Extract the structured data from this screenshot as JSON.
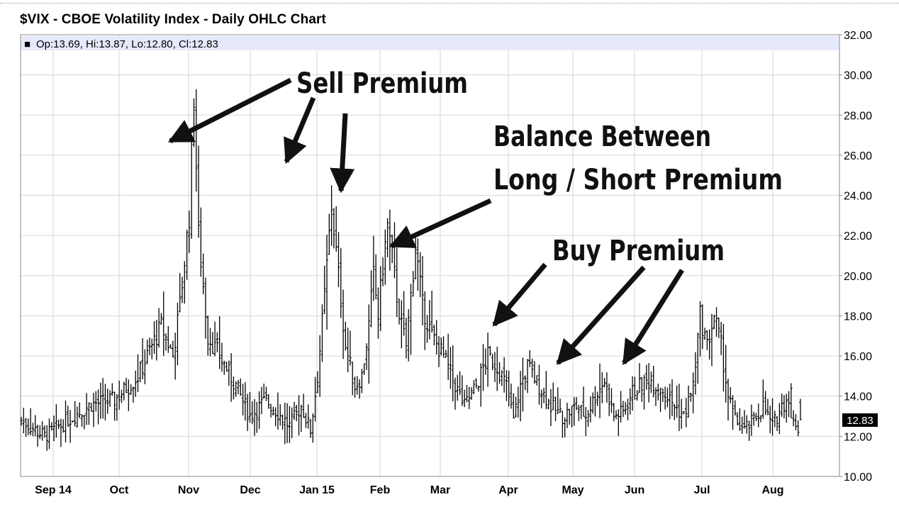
{
  "chart_data": {
    "type": "ohlc",
    "title": "$VIX - CBOE Volatility Index - Daily OHLC Chart",
    "legend": {
      "symbol": "■",
      "text": "Op:13.69, Hi:13.87, Lo:12.80, Cl:12.83"
    },
    "y_axis": {
      "position": "right",
      "ylim": [
        10,
        32
      ],
      "ticks": [
        "32.00",
        "30.00",
        "28.00",
        "26.00",
        "24.00",
        "22.00",
        "20.00",
        "18.00",
        "16.00",
        "14.00",
        "12.00",
        "10.00"
      ]
    },
    "x_axis": {
      "tick_labels": [
        "Sep 14",
        "Oct",
        "Nov",
        "Dec",
        "Jan 15",
        "Feb",
        "Mar",
        "Apr",
        "May",
        "Jun",
        "Jul",
        "Aug"
      ]
    },
    "grid": true,
    "last_value_label": "12.83",
    "colors": {
      "bars": "#000000",
      "grid": "#d6d6d6",
      "legend_band": "#e6e8fb"
    },
    "keyframes": [
      [
        0,
        12.8
      ],
      [
        10,
        12.0
      ],
      [
        20,
        12.8
      ],
      [
        30,
        13.6
      ],
      [
        40,
        13.8
      ],
      [
        50,
        15.0
      ],
      [
        60,
        17.5
      ],
      [
        65,
        16.0
      ],
      [
        68,
        18.5
      ],
      [
        72,
        23.0
      ],
      [
        74,
        29.0
      ],
      [
        76,
        22.0
      ],
      [
        80,
        17.0
      ],
      [
        85,
        16.0
      ],
      [
        92,
        14.5
      ],
      [
        98,
        13.0
      ],
      [
        105,
        13.8
      ],
      [
        115,
        12.5
      ],
      [
        120,
        13.5
      ],
      [
        124,
        12.3
      ],
      [
        127,
        15.0
      ],
      [
        130,
        19.0
      ],
      [
        133,
        23.5
      ],
      [
        136,
        20.0
      ],
      [
        139,
        16.5
      ],
      [
        143,
        14.5
      ],
      [
        146,
        15.0
      ],
      [
        149,
        17.5
      ],
      [
        151,
        20.0
      ],
      [
        153,
        18.0
      ],
      [
        155,
        20.5
      ],
      [
        157,
        22.5
      ],
      [
        159,
        21.0
      ],
      [
        161,
        19.0
      ],
      [
        163,
        17.5
      ],
      [
        165,
        16.5
      ],
      [
        167,
        19.0
      ],
      [
        169,
        21.5
      ],
      [
        172,
        18.5
      ],
      [
        176,
        17.0
      ],
      [
        181,
        16.0
      ],
      [
        185,
        14.8
      ],
      [
        190,
        13.5
      ],
      [
        195,
        14.5
      ],
      [
        200,
        16.0
      ],
      [
        204,
        15.5
      ],
      [
        208,
        14.5
      ],
      [
        211,
        12.8
      ],
      [
        214,
        14.5
      ],
      [
        217,
        15.5
      ],
      [
        222,
        14.5
      ],
      [
        227,
        13.5
      ],
      [
        232,
        13.0
      ],
      [
        238,
        13.5
      ],
      [
        242,
        13.0
      ],
      [
        246,
        14.0
      ],
      [
        250,
        14.8
      ],
      [
        254,
        13.0
      ],
      [
        258,
        13.2
      ],
      [
        262,
        14.2
      ],
      [
        266,
        14.6
      ],
      [
        270,
        14.8
      ],
      [
        275,
        14.3
      ],
      [
        280,
        13.5
      ],
      [
        284,
        13.0
      ],
      [
        288,
        14.5
      ],
      [
        291,
        18.0
      ],
      [
        294,
        16.5
      ],
      [
        297,
        18.0
      ],
      [
        300,
        16.5
      ],
      [
        303,
        14.0
      ],
      [
        306,
        12.8
      ],
      [
        310,
        12.3
      ],
      [
        314,
        12.8
      ],
      [
        318,
        13.5
      ],
      [
        322,
        12.5
      ],
      [
        326,
        13.5
      ],
      [
        330,
        14.2
      ],
      [
        334,
        13.5
      ]
    ],
    "series": [
      {
        "o": 12.9,
        "h": 13.3,
        "l": 12.5,
        "c": 12.8
      },
      {
        "o": 12.8,
        "h": 13.1,
        "l": 12.3,
        "c": 12.5
      },
      {
        "o": 12.5,
        "h": 12.8,
        "l": 12.0,
        "c": 12.2
      }
    ]
  },
  "annotations": {
    "sell_premium": "Sell Premium",
    "balance_line1": "Balance Between",
    "balance_line2": "Long / Short Premium",
    "buy_premium": "Buy Premium"
  }
}
